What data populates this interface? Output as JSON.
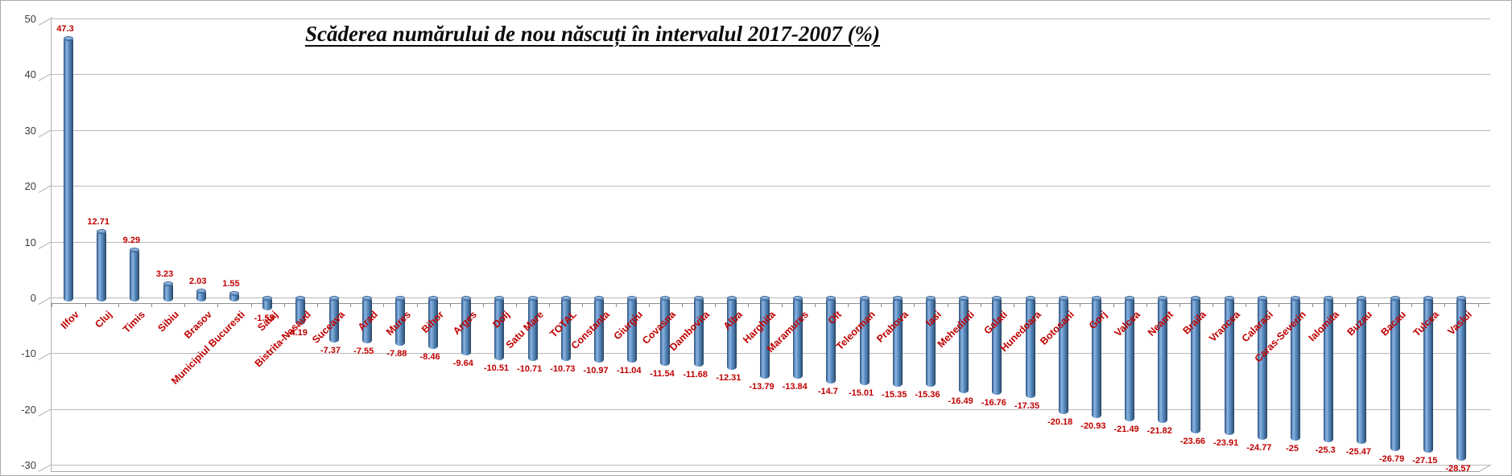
{
  "chart_data": {
    "type": "bar",
    "subtype": "3d-cylinder-column",
    "title": "Scăderea numărului de nou născuți în intervalul 2017-2007 (%)",
    "xlabel": "",
    "ylabel": "",
    "ylim": [
      -30,
      50
    ],
    "ytick_step": 10,
    "ytick_labels": [
      "50",
      "40",
      "30",
      "20",
      "10",
      "0",
      "-10",
      "-20",
      "-30"
    ],
    "grid": true,
    "legend": false,
    "bar_color": "#4f81bd",
    "data_label_color": "#c00000",
    "category_label_color": "#c00000",
    "axis_tick_label_color": "#3c3c3c",
    "categories": [
      "Ilfov",
      "Cluj",
      "Timis",
      "Sibiu",
      "Brasov",
      "Municipiul Bucuresti",
      "Salaj",
      "Bistrita-Nasaud",
      "Suceava",
      "Arad",
      "Mures",
      "Bihor",
      "Arges",
      "Dolj",
      "Satu Mare",
      "TOTAL",
      "Constanta",
      "Giurgiu",
      "Covasna",
      "Dambovita",
      "Alba",
      "Harghita",
      "Maramures",
      "Olt",
      "Teleorman",
      "Prahova",
      "Iasi",
      "Mehedinti",
      "Galati",
      "Hunedoara",
      "Botosani",
      "Gorj",
      "Valcea",
      "Neamt",
      "Braila",
      "Vrancea",
      "Calarasi",
      "Caras-Severin",
      "Ialomita",
      "Buzau",
      "Bacau",
      "Tulcea",
      "Vaslui"
    ],
    "values": [
      47.3,
      12.71,
      9.29,
      3.23,
      2.03,
      1.55,
      -1.55,
      -4.19,
      -7.37,
      -7.55,
      -7.88,
      -8.46,
      -9.64,
      -10.51,
      -10.71,
      -10.73,
      -10.97,
      -11.04,
      -11.54,
      -11.68,
      -12.31,
      -13.79,
      -13.84,
      -14.7,
      -15.01,
      -15.35,
      -15.36,
      -16.49,
      -16.76,
      -17.35,
      -20.18,
      -20.93,
      -21.49,
      -21.82,
      -23.66,
      -23.91,
      -24.77,
      -25,
      -25.3,
      -25.47,
      -26.79,
      -27.15,
      -28.57
    ],
    "value_labels": [
      "47.3",
      "12.71",
      "9.29",
      "3.23",
      "2.03",
      "1.55",
      "-1.55",
      "-4.19",
      "-7.37",
      "-7.55",
      "-7.88",
      "-8.46",
      "-9.64",
      "-10.51",
      "-10.71",
      "-10.73",
      "-10.97",
      "-11.04",
      "-11.54",
      "-11.68",
      "-12.31",
      "-13.79",
      "-13.84",
      "-14.7",
      "-15.01",
      "-15.35",
      "-15.36",
      "-16.49",
      "-16.76",
      "-17.35",
      "-20.18",
      "-20.93",
      "-21.49",
      "-21.82",
      "-23.66",
      "-23.91",
      "-24.77",
      "-25",
      "-25.3",
      "-25.47",
      "-26.79",
      "-27.15",
      "-28.57"
    ]
  }
}
